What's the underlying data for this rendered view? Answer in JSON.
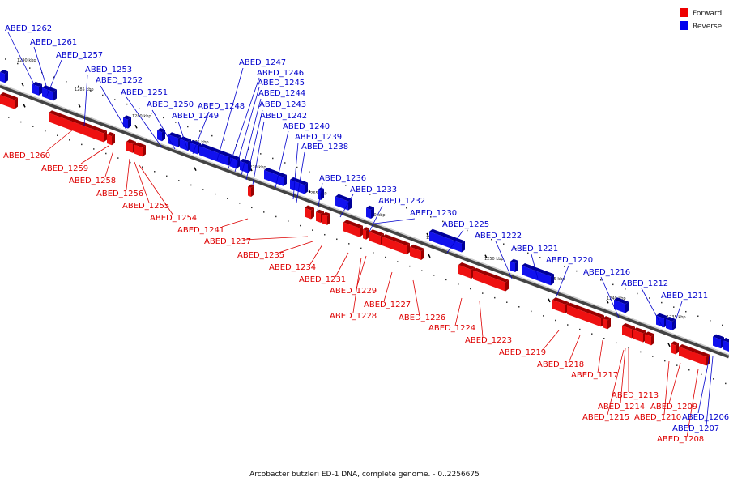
{
  "caption": "Arcobacter butzleri ED-1 DNA, complete genome. - 0..2256675",
  "legend": [
    {
      "label": "Forward",
      "color": "#ee0000"
    },
    {
      "label": "Reverse",
      "color": "#0000ee"
    }
  ],
  "ticks": [
    "1290 kbp",
    "1285 kbp",
    "1280 kbp",
    "1275 kbp",
    "1270 kbp",
    "1265 kbp",
    "1260 kbp",
    "1255 kbp",
    "1250 kbp",
    "1245 kbp",
    "1240 kbp",
    "1235 kbp"
  ],
  "reverse_labels": [
    "ABED_1262",
    "ABED_1261",
    "ABED_1257",
    "ABED_1253",
    "ABED_1252",
    "ABED_1251",
    "ABED_1250",
    "ABED_1249",
    "ABED_1248",
    "ABED_1247",
    "ABED_1246",
    "ABED_1245",
    "ABED_1244",
    "ABED_1243",
    "ABED_1242",
    "ABED_1240",
    "ABED_1239",
    "ABED_1238",
    "ABED_1236",
    "ABED_1233",
    "ABED_1232",
    "ABED_1230",
    "ABED_1225",
    "ABED_1222",
    "ABED_1221",
    "ABED_1220",
    "ABED_1216",
    "ABED_1212",
    "ABED_1211",
    "ABED_1206",
    "ABED_1207"
  ],
  "forward_labels": [
    "ABED_1260",
    "ABED_1259",
    "ABED_1258",
    "ABED_1256",
    "ABED_1255",
    "ABED_1254",
    "ABED_1241",
    "ABED_1237",
    "ABED_1235",
    "ABED_1234",
    "ABED_1231",
    "ABED_1229",
    "ABED_1227",
    "ABED_1228",
    "ABED_1226",
    "ABED_1224",
    "ABED_1223",
    "ABED_1219",
    "ABED_1218",
    "ABED_1217",
    "ABED_1213",
    "ABED_1214",
    "ABED_1215",
    "ABED_1210",
    "ABED_1209",
    "ABED_1208"
  ]
}
